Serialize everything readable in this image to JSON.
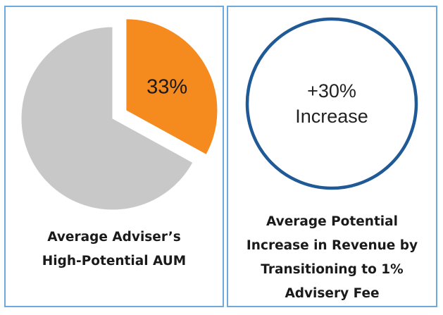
{
  "chart_data": [
    {
      "type": "pie",
      "slices": [
        {
          "name": "",
          "value": 33,
          "label": "33%",
          "color": "#f58a1f",
          "exploded": true
        },
        {
          "name": "",
          "value": 67,
          "label": "",
          "color": "#c8c8c8",
          "exploded": false
        }
      ],
      "caption_lines": [
        "Average Adviser’s",
        "High-Potential AUM"
      ]
    },
    {
      "type": "other",
      "shape": "circle",
      "ring_color": "#1f5a96",
      "value_lines": [
        "+30%",
        "Increase"
      ],
      "caption_lines": [
        "Average Potential",
        "Increase in Revenue by",
        "Transitioning to 1%",
        "Advisery Fee"
      ]
    }
  ],
  "colors": {
    "panel_border": "#6fa8dc"
  }
}
